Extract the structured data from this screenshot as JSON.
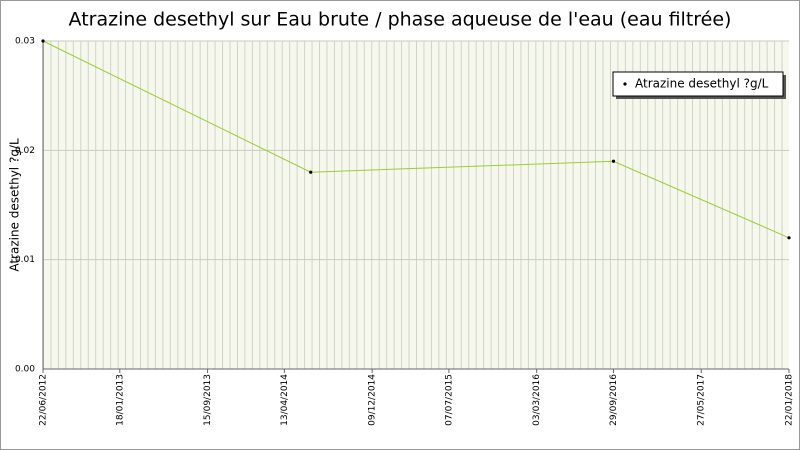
{
  "chart_data": {
    "type": "line",
    "title": "Atrazine desethyl sur Eau brute / phase aqueuse de l'eau (eau filtrée)",
    "y_label": "Atrazine desethyl ?g/L",
    "x": [
      "2012-06-22",
      "2014-06-24",
      "2016-09-29",
      "2018-01-22"
    ],
    "series": [
      {
        "name": "Atrazine desethyl ?g/L",
        "color": "#9acd32",
        "values": [
          0.03,
          0.018,
          0.019,
          0.012
        ]
      }
    ],
    "xlim": [
      "2012-06-22",
      "2018-01-22"
    ],
    "xticks": [
      {
        "value": "2012-06-22",
        "label": "22/06/2012"
      },
      {
        "value": "2013-01-18",
        "label": "18/01/2013"
      },
      {
        "value": "2013-09-15",
        "label": "15/09/2013"
      },
      {
        "value": "2014-04-13",
        "label": "13/04/2014"
      },
      {
        "value": "2014-12-09",
        "label": "09/12/2014"
      },
      {
        "value": "2015-07-07",
        "label": "07/07/2015"
      },
      {
        "value": "2016-03-03",
        "label": "03/03/2016"
      },
      {
        "value": "2016-09-29",
        "label": "29/09/2016"
      },
      {
        "value": "2017-05-27",
        "label": "27/05/2017"
      },
      {
        "value": "2018-01-22",
        "label": "22/01/2018"
      }
    ],
    "ylim": [
      0,
      0.03
    ],
    "yticks": [
      {
        "value": 0,
        "label": "0.00"
      },
      0.01,
      0.02,
      0.03
    ],
    "grid": true,
    "legend": "top-right"
  }
}
